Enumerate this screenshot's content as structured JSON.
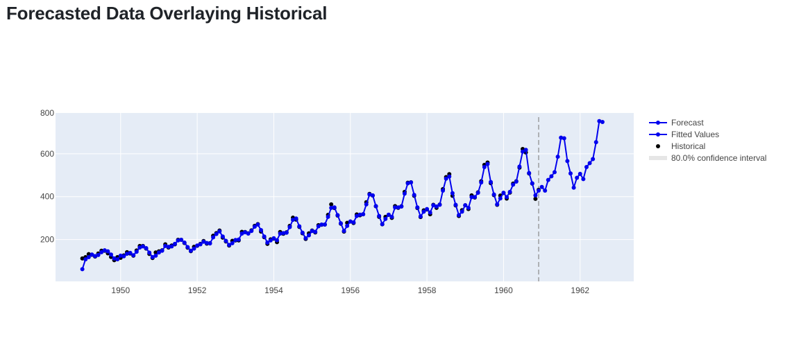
{
  "page": {
    "title": "Forecasted Data Overlaying Historical"
  },
  "chart_data": {
    "type": "line",
    "title": "Forecasted Data Overlaying Historical",
    "xlim": [
      1948.3,
      1963.4
    ],
    "ylim": [
      5,
      790
    ],
    "xticks": [
      1950,
      1952,
      1954,
      1956,
      1958,
      1960,
      1962
    ],
    "yticks": [
      200,
      400,
      600,
      800
    ],
    "grid": true,
    "legend_position": "right",
    "forecast_start": 1960.917,
    "colors": {
      "plot_bg": "#e5ecf6",
      "grid": "#ffffff",
      "fitted": "#0000ee",
      "historical": "#000000",
      "ci": "#e6e6e6",
      "divider": "#888888"
    },
    "legend": [
      "Forecast",
      "Fitted Values",
      "Historical",
      "80.0% confidence interval"
    ],
    "series": [
      {
        "name": "Historical",
        "start": 1949.0,
        "step": 0.08333,
        "values": [
          112,
          118,
          132,
          129,
          121,
          135,
          148,
          148,
          136,
          119,
          104,
          118,
          115,
          126,
          141,
          135,
          125,
          149,
          170,
          170,
          158,
          133,
          114,
          140,
          145,
          150,
          178,
          163,
          172,
          178,
          199,
          199,
          184,
          162,
          146,
          166,
          171,
          180,
          193,
          181,
          183,
          218,
          230,
          242,
          209,
          191,
          172,
          194,
          196,
          196,
          236,
          235,
          229,
          243,
          264,
          272,
          237,
          211,
          180,
          201,
          204,
          188,
          235,
          227,
          234,
          264,
          302,
          293,
          259,
          229,
          203,
          229,
          242,
          233,
          267,
          269,
          270,
          315,
          364,
          347,
          312,
          274,
          237,
          278,
          284,
          277,
          317,
          313,
          318,
          374,
          413,
          405,
          355,
          306,
          271,
          306,
          315,
          301,
          356,
          348,
          355,
          422,
          465,
          467,
          404,
          347,
          305,
          336,
          340,
          318,
          362,
          348,
          363,
          435,
          491,
          505,
          404,
          359,
          310,
          337,
          360,
          342,
          406,
          396,
          420,
          472,
          548,
          559,
          463,
          407,
          362,
          405,
          417,
          391,
          419,
          461,
          472,
          535,
          622,
          606,
          508,
          461,
          390,
          432
        ]
      },
      {
        "name": "Fitted Values",
        "start": 1949.0,
        "step": 0.08333,
        "values": [
          62,
          108,
          118,
          130,
          123,
          128,
          141,
          150,
          145,
          130,
          112,
          108,
          125,
          122,
          134,
          138,
          127,
          143,
          163,
          168,
          160,
          139,
          118,
          125,
          140,
          148,
          170,
          166,
          168,
          180,
          196,
          199,
          186,
          165,
          148,
          158,
          172,
          178,
          190,
          184,
          182,
          210,
          226,
          238,
          214,
          194,
          175,
          183,
          198,
          200,
          228,
          234,
          228,
          240,
          260,
          270,
          244,
          214,
          186,
          196,
          206,
          197,
          228,
          230,
          232,
          258,
          292,
          298,
          262,
          232,
          206,
          220,
          240,
          236,
          262,
          270,
          270,
          306,
          348,
          350,
          314,
          276,
          240,
          264,
          284,
          280,
          310,
          316,
          318,
          364,
          410,
          406,
          356,
          310,
          272,
          296,
          316,
          306,
          350,
          350,
          354,
          414,
          462,
          466,
          408,
          350,
          308,
          330,
          342,
          326,
          360,
          354,
          362,
          428,
          484,
          494,
          416,
          362,
          314,
          330,
          360,
          348,
          398,
          398,
          418,
          466,
          538,
          552,
          468,
          410,
          364,
          392,
          418,
          398,
          422,
          456,
          470,
          540,
          610,
          618,
          510,
          462,
          406,
          428
        ]
      },
      {
        "name": "Forecast",
        "start": 1961.0,
        "step": 0.08333,
        "values": [
          445,
          428,
          478,
          495,
          514,
          586,
          675,
          672,
          566,
          508,
          442,
          488,
          506,
          482,
          538,
          556,
          575,
          654,
          752,
          748
        ]
      }
    ]
  }
}
